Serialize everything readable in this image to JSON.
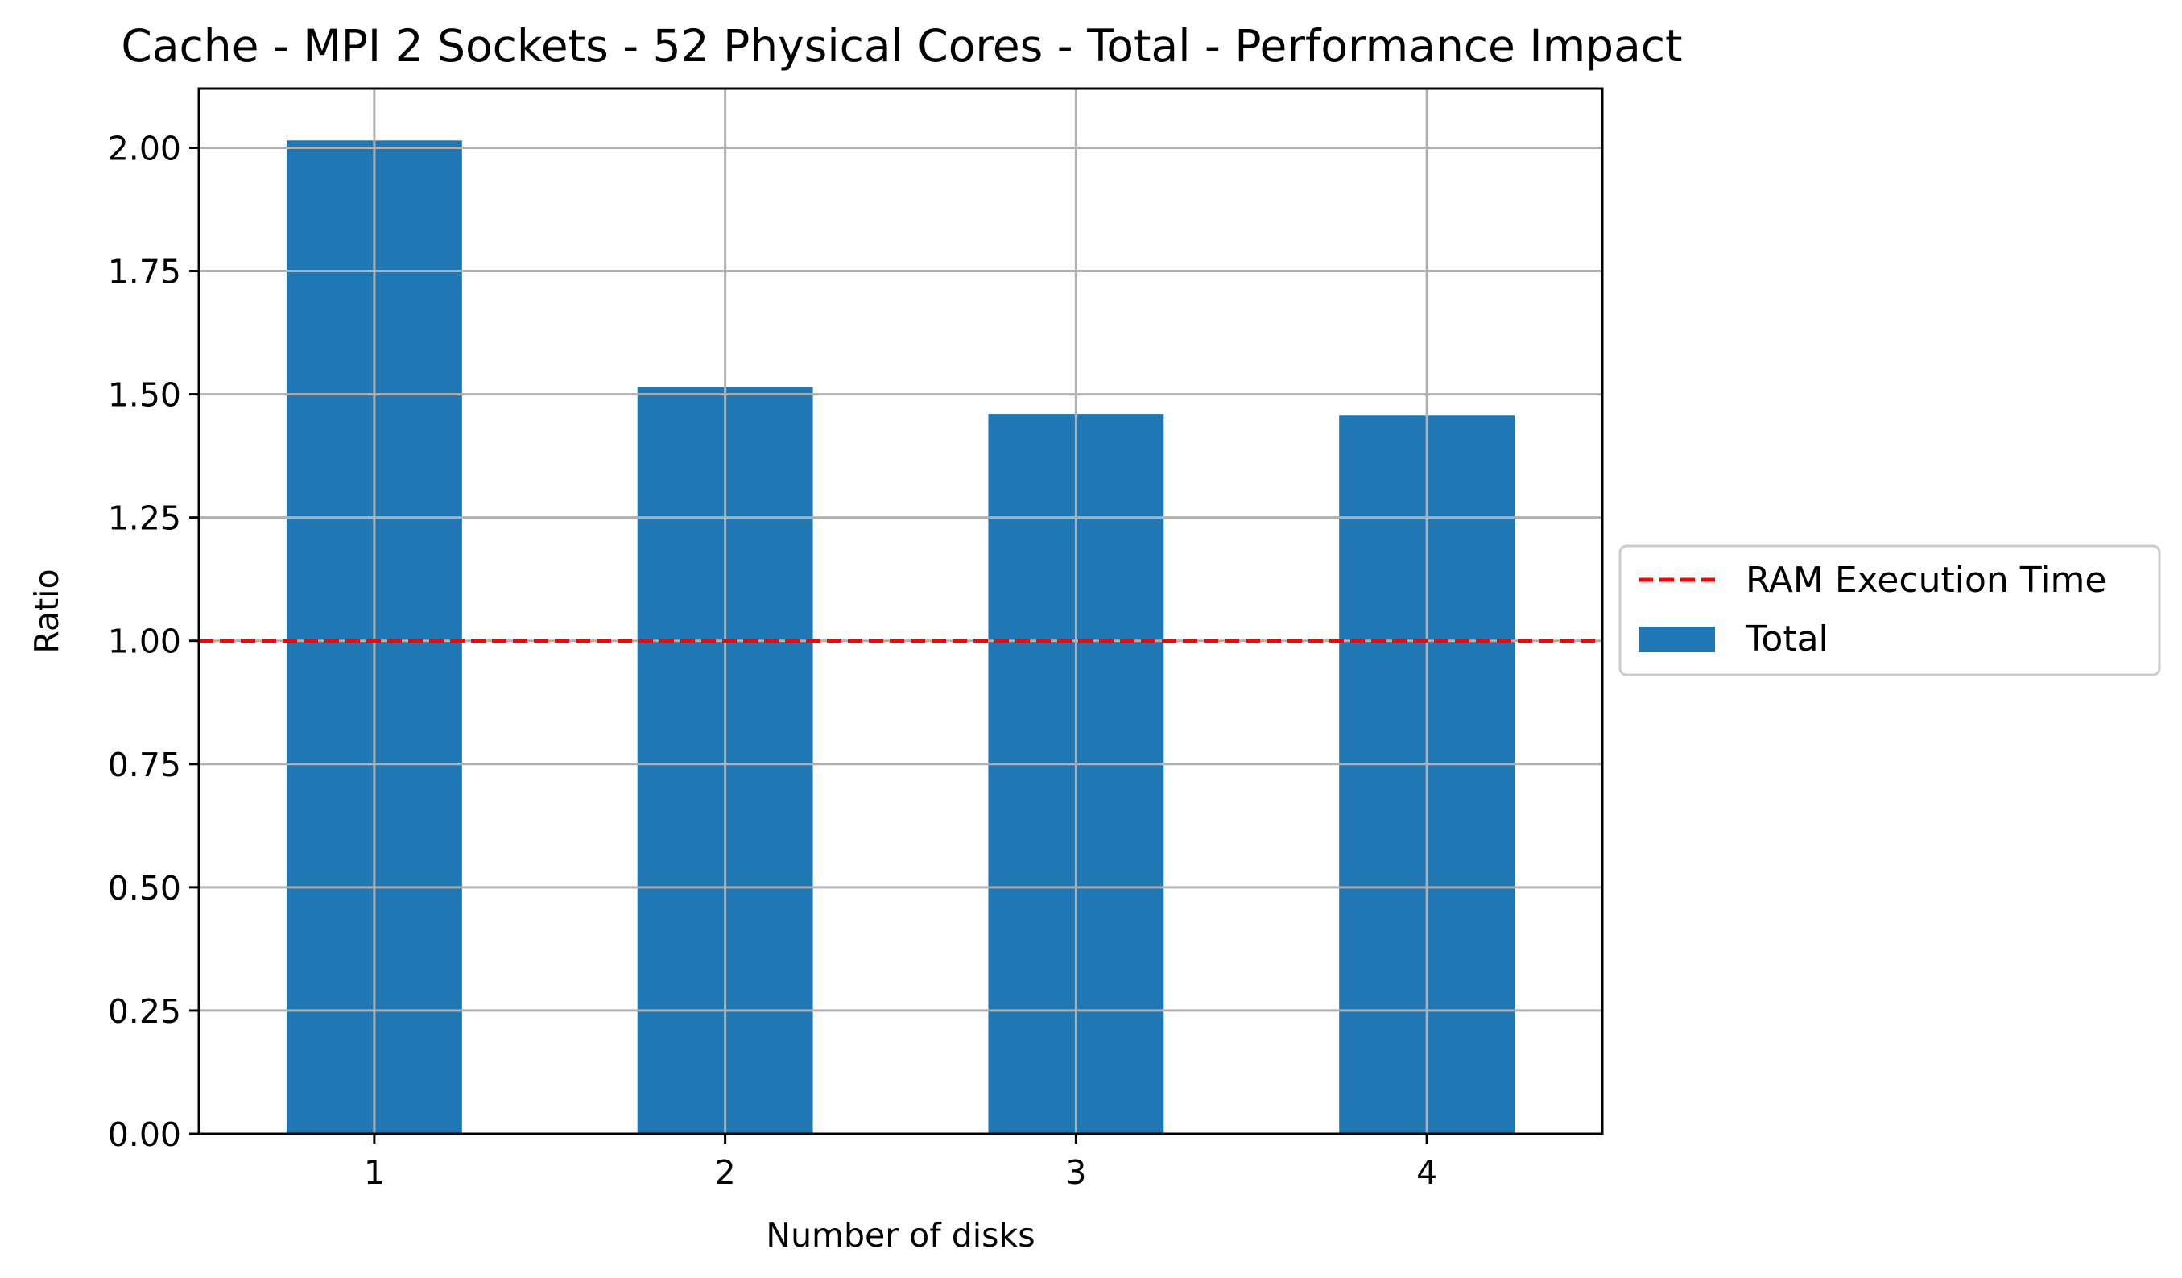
{
  "colors": {
    "bar": "#1f77b4",
    "ref_line": "#ff0000",
    "grid": "#b0b0b0",
    "axes": "#000000"
  },
  "chart_data": {
    "type": "bar",
    "title": "Cache - MPI 2 Sockets - 52 Physical Cores - Total - Performance Impact",
    "xlabel": "Number of disks",
    "ylabel": "Ratio",
    "categories": [
      "1",
      "2",
      "3",
      "4"
    ],
    "series": [
      {
        "name": "Total",
        "values": [
          2.015,
          1.515,
          1.46,
          1.458
        ]
      }
    ],
    "reference_line": {
      "name": "RAM Execution Time",
      "value": 1.0,
      "style": "dashed"
    },
    "ylim": [
      0,
      2.12
    ],
    "yticks": [
      0.0,
      0.25,
      0.5,
      0.75,
      1.0,
      1.25,
      1.5,
      1.75,
      2.0
    ],
    "ytick_labels": [
      "0.00",
      "0.25",
      "0.50",
      "0.75",
      "1.00",
      "1.25",
      "1.50",
      "1.75",
      "2.00"
    ],
    "grid": true,
    "legend_placement": "right-center outside",
    "legend": [
      "RAM Execution Time",
      "Total"
    ]
  }
}
